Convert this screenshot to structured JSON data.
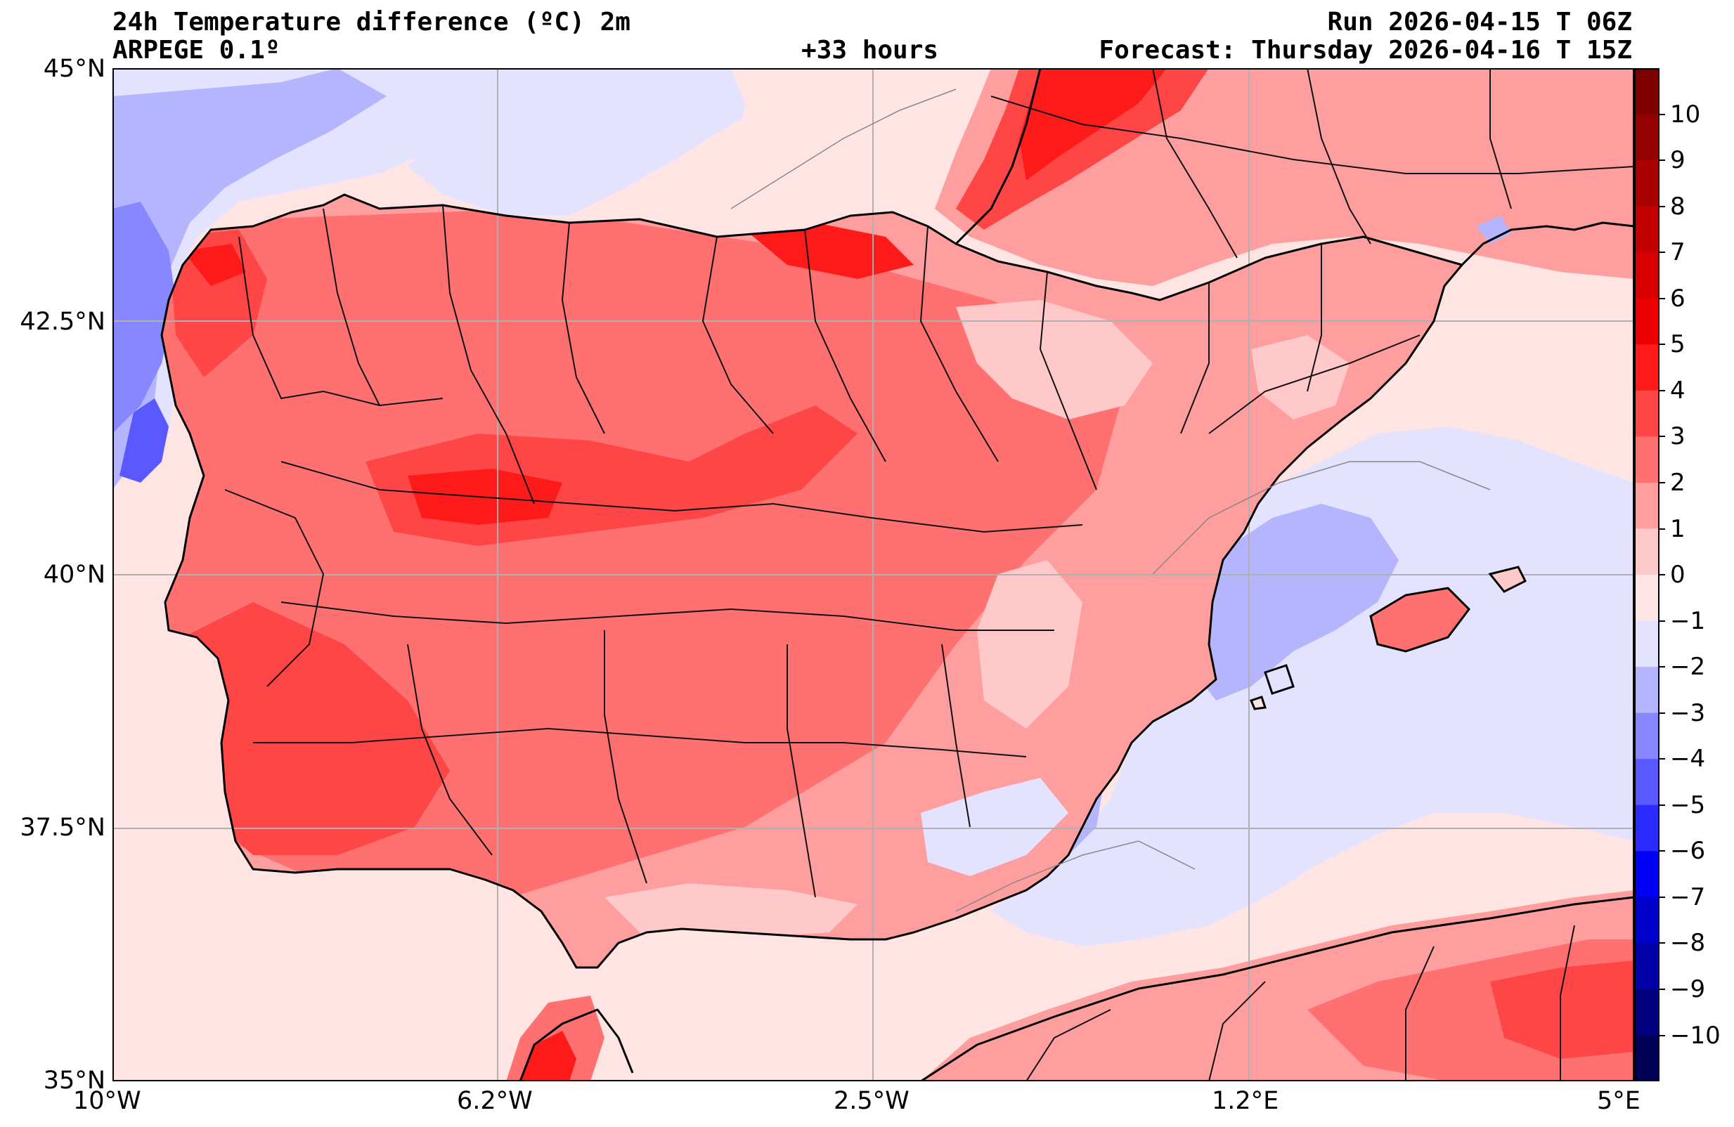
{
  "header": {
    "title": "24h Temperature difference (ºC) 2m",
    "model": "ARPEGE 0.1º",
    "lead_time": "+33 hours",
    "run": "Run 2026-04-15 T 06Z",
    "forecast": "Forecast: Thursday 2026-04-16 T 15Z"
  },
  "map": {
    "lat_labels": [
      "45°N",
      "42.5°N",
      "40°N",
      "37.5°N",
      "35°N"
    ],
    "lon_labels": [
      "10°W",
      "6.2°W",
      "2.5°W",
      "1.2°E",
      "5°E"
    ],
    "extent": {
      "lon_min": -10,
      "lon_max": 5,
      "lat_min": 35,
      "lat_max": 45
    },
    "gridlines": true
  },
  "colorbar": {
    "tick_labels": [
      "10",
      "9",
      "8",
      "7",
      "6",
      "5",
      "4",
      "3",
      "2",
      "1",
      "0",
      "−1",
      "−2",
      "−3",
      "−4",
      "−5",
      "−6",
      "−7",
      "−8",
      "−9",
      "−10"
    ],
    "levels_top_to_bottom": [
      11,
      10,
      9,
      8,
      7,
      6,
      5,
      4,
      3,
      2,
      1,
      0,
      -1,
      -2,
      -3,
      -4,
      -5,
      -6,
      -7,
      -8,
      -9,
      -10,
      -11
    ],
    "colors_top_to_bottom": [
      "#7f0000",
      "#950000",
      "#ab0000",
      "#c20000",
      "#d80000",
      "#ee0000",
      "#ff1a1a",
      "#ff4646",
      "#ff7171",
      "#ff9e9e",
      "#ffc9c9",
      "#ffe5e5",
      "#e3e3ff",
      "#b5b5ff",
      "#8787ff",
      "#5959ff",
      "#2b2bff",
      "#0000f2",
      "#0000cc",
      "#0000a6",
      "#00007f",
      "#000059"
    ]
  },
  "palette": {
    "sea_neutral": "#ffe4e4",
    "sea_cool": "#e3e3ff",
    "sea_cooler": "#b5b5ff",
    "land_warm1": "#ff9e9e",
    "land_warm2": "#ff7171",
    "land_warm3": "#ff4646",
    "land_warm4": "#ff1a1a",
    "land_warm5": "#ee0000",
    "blue_deep": "#5959ff",
    "coast": "#000000",
    "border": "#111111",
    "grid": "#b0b0b0"
  }
}
